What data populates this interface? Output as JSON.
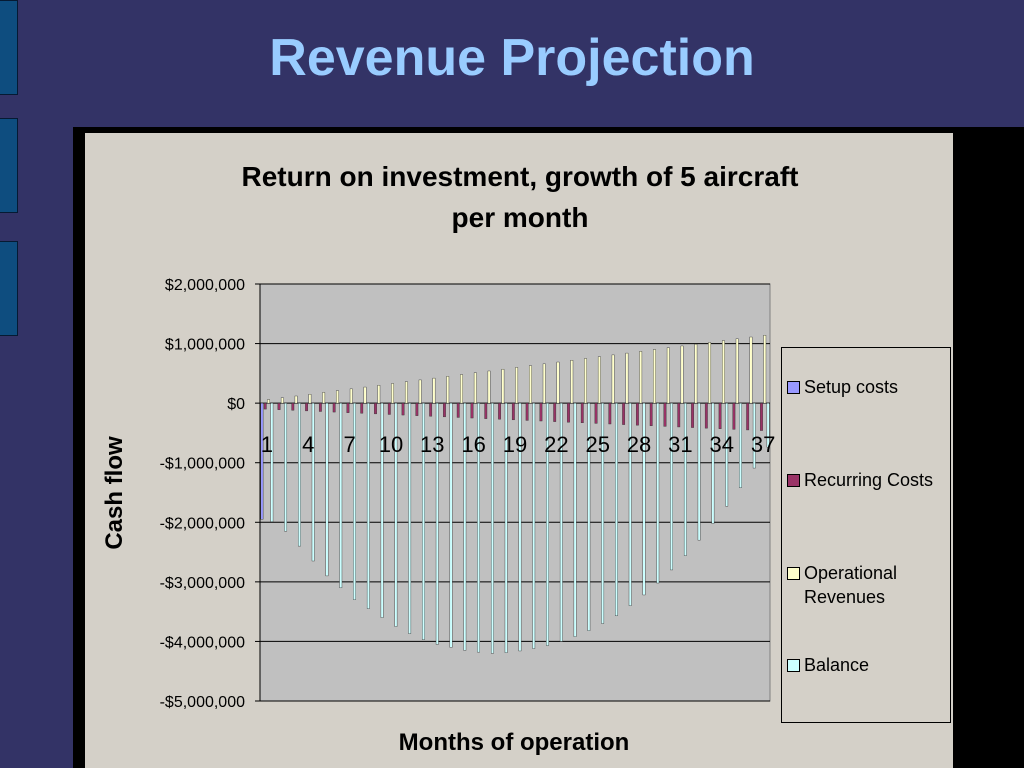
{
  "slide": {
    "title": "Revenue Projection"
  },
  "colors": {
    "setup": "#9999ff",
    "recurring": "#993366",
    "operational": "#ffffcc",
    "balance": "#ccffff"
  },
  "chart_data": {
    "type": "bar",
    "title_line1": "Return on investment, growth of 5 aircraft",
    "title_line2": "per month",
    "xlabel": "Months of operation",
    "ylabel": "Cash flow",
    "ylim": [
      -5000000,
      2000000
    ],
    "y_ticks": [
      2000000,
      1000000,
      0,
      -1000000,
      -2000000,
      -3000000,
      -4000000,
      -5000000
    ],
    "y_tick_labels": [
      "$2,000,000",
      "$1,000,000",
      "$0",
      "-$1,000,000",
      "-$2,000,000",
      "-$3,000,000",
      "-$4,000,000",
      "-$5,000,000"
    ],
    "x_tick_labels": [
      "1",
      "4",
      "7",
      "10",
      "13",
      "16",
      "19",
      "22",
      "25",
      "28",
      "31",
      "34",
      "37"
    ],
    "x_tick_months": [
      1,
      4,
      7,
      10,
      13,
      16,
      19,
      22,
      25,
      28,
      31,
      34,
      37
    ],
    "categories": [
      1,
      2,
      3,
      4,
      5,
      6,
      7,
      8,
      9,
      10,
      11,
      12,
      13,
      14,
      15,
      16,
      17,
      18,
      19,
      20,
      21,
      22,
      23,
      24,
      25,
      26,
      27,
      28,
      29,
      30,
      31,
      32,
      33,
      34,
      35,
      36,
      37
    ],
    "grid": true,
    "legend_position": "right",
    "series": [
      {
        "name": "Setup costs",
        "values": [
          -1950000,
          0,
          0,
          0,
          0,
          0,
          0,
          0,
          0,
          0,
          0,
          0,
          0,
          0,
          0,
          0,
          0,
          0,
          0,
          0,
          0,
          0,
          0,
          0,
          0,
          0,
          0,
          0,
          0,
          0,
          0,
          0,
          0,
          0,
          0,
          0,
          0
        ]
      },
      {
        "name": "Recurring Costs",
        "values": [
          -100000,
          -110000,
          -120000,
          -130000,
          -140000,
          -150000,
          -160000,
          -170000,
          -180000,
          -190000,
          -200000,
          -210000,
          -220000,
          -230000,
          -240000,
          -250000,
          -260000,
          -270000,
          -280000,
          -290000,
          -300000,
          -310000,
          -320000,
          -330000,
          -340000,
          -350000,
          -360000,
          -370000,
          -380000,
          -390000,
          -400000,
          -410000,
          -420000,
          -430000,
          -440000,
          -450000,
          -460000
        ]
      },
      {
        "name": "Operational Revenues",
        "values": [
          60000,
          90000,
          120000,
          150000,
          180000,
          210000,
          240000,
          270000,
          300000,
          330000,
          360000,
          390000,
          420000,
          450000,
          480000,
          510000,
          540000,
          570000,
          600000,
          630000,
          660000,
          690000,
          720000,
          750000,
          780000,
          810000,
          840000,
          870000,
          900000,
          930000,
          960000,
          990000,
          1020000,
          1050000,
          1080000,
          1110000,
          1140000
        ]
      },
      {
        "name": "Balance",
        "values": [
          -1990000,
          -2150000,
          -2400000,
          -2650000,
          -2900000,
          -3100000,
          -3300000,
          -3450000,
          -3600000,
          -3750000,
          -3870000,
          -3970000,
          -4050000,
          -4100000,
          -4150000,
          -4180000,
          -4200000,
          -4190000,
          -4160000,
          -4120000,
          -4070000,
          -4000000,
          -3920000,
          -3820000,
          -3700000,
          -3570000,
          -3400000,
          -3220000,
          -3020000,
          -2800000,
          -2560000,
          -2300000,
          -2020000,
          -1730000,
          -1420000,
          -1090000,
          -740000
        ]
      }
    ]
  }
}
